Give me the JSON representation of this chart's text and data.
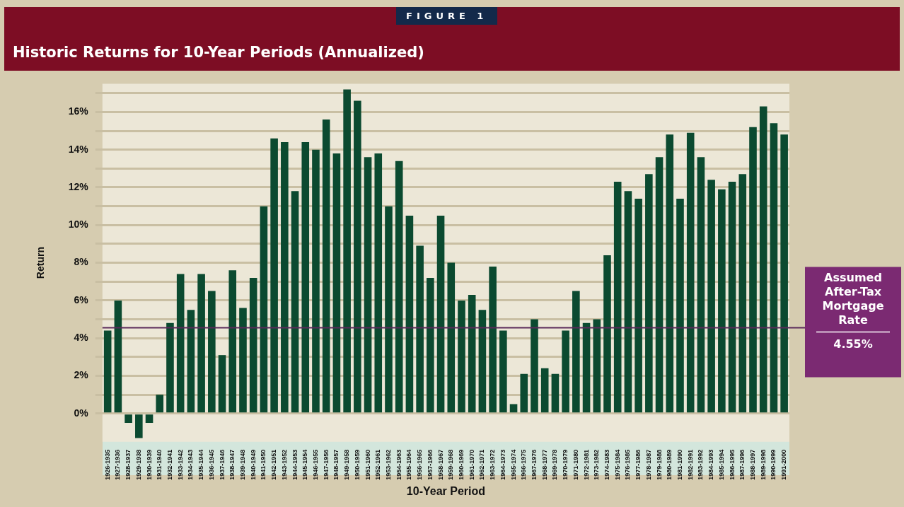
{
  "chart_data": {
    "type": "bar",
    "title": "Historic Returns for 10-Year Periods (Annualized)",
    "xlabel": "10-Year Period",
    "ylabel": "Return",
    "categories": [
      "1926-1935",
      "1927-1936",
      "1928-1937",
      "1929-1938",
      "1930-1939",
      "1931-1940",
      "1932-1941",
      "1933-1942",
      "1934-1943",
      "1935-1944",
      "1936-1945",
      "1937-1946",
      "1938-1947",
      "1939-1948",
      "1940-1949",
      "1941-1950",
      "1942-1951",
      "1943-1952",
      "1944-1953",
      "1945-1954",
      "1946-1955",
      "1947-1956",
      "1948-1957",
      "1949-1958",
      "1950-1959",
      "1951-1960",
      "1952-1961",
      "1953-1962",
      "1954-1963",
      "1955-1964",
      "1956-1965",
      "1957-1966",
      "1958-1967",
      "1959-1968",
      "1960-1969",
      "1961-1970",
      "1962-1971",
      "1963-1972",
      "1964-1973",
      "1965-1974",
      "1966-1975",
      "1967-1976",
      "1968-1977",
      "1969-1978",
      "1970-1979",
      "1971-1980",
      "1972-1981",
      "1973-1982",
      "1974-1983",
      "1975-1984",
      "1976-1985",
      "1977-1986",
      "1978-1987",
      "1979-1988",
      "1980-1989",
      "1981-1990",
      "1982-1991",
      "1983-1992",
      "1984-1993",
      "1985-1994",
      "1986-1995",
      "1987-1996",
      "1988-1997",
      "1989-1998",
      "1990-1999",
      "1991-2000"
    ],
    "values": [
      4.4,
      6.0,
      -0.5,
      -1.3,
      -0.5,
      1.0,
      4.8,
      7.4,
      5.5,
      7.4,
      6.5,
      3.1,
      7.6,
      5.6,
      7.2,
      11.0,
      14.6,
      14.4,
      11.8,
      14.4,
      14.0,
      15.6,
      13.8,
      17.2,
      16.6,
      13.6,
      13.8,
      11.0,
      13.4,
      10.5,
      8.9,
      7.2,
      10.5,
      8.0,
      6.0,
      6.3,
      5.5,
      7.8,
      4.4,
      0.5,
      2.1,
      5.0,
      2.4,
      2.1,
      4.4,
      6.5,
      4.8,
      5.0,
      8.4,
      12.3,
      11.8,
      11.4,
      12.7,
      13.6,
      14.8,
      11.4,
      14.9,
      13.6,
      12.4,
      11.9,
      12.3,
      12.7,
      15.2,
      16.3,
      15.4,
      14.8
    ],
    "color": "#0b4a30",
    "ylim": [
      -1.5,
      17.5
    ],
    "yticks": [
      {
        "value": 0,
        "label": "0%"
      },
      {
        "value": 1,
        "label": null
      },
      {
        "value": 2,
        "label": "2%"
      },
      {
        "value": 3,
        "label": null
      },
      {
        "value": 4,
        "label": "4%"
      },
      {
        "value": 5,
        "label": null
      },
      {
        "value": 6,
        "label": "6%"
      },
      {
        "value": 7,
        "label": null
      },
      {
        "value": 8,
        "label": "8%"
      },
      {
        "value": 9,
        "label": null
      },
      {
        "value": 10,
        "label": "10%"
      },
      {
        "value": 11,
        "label": null
      },
      {
        "value": 12,
        "label": "12%"
      },
      {
        "value": 13,
        "label": null
      },
      {
        "value": 14,
        "label": "14%"
      },
      {
        "value": 15,
        "label": null
      },
      {
        "value": 16,
        "label": "16%"
      },
      {
        "value": 17,
        "label": null
      }
    ],
    "grid": "y",
    "legend": false,
    "ref_lines": [
      {
        "axis": "y",
        "value": 4.55,
        "label": "Assumed After-Tax Mortgage Rate",
        "color": "#5a2a5a"
      }
    ],
    "annotations": [
      "FIGURE 1",
      "4.55%"
    ]
  }
}
